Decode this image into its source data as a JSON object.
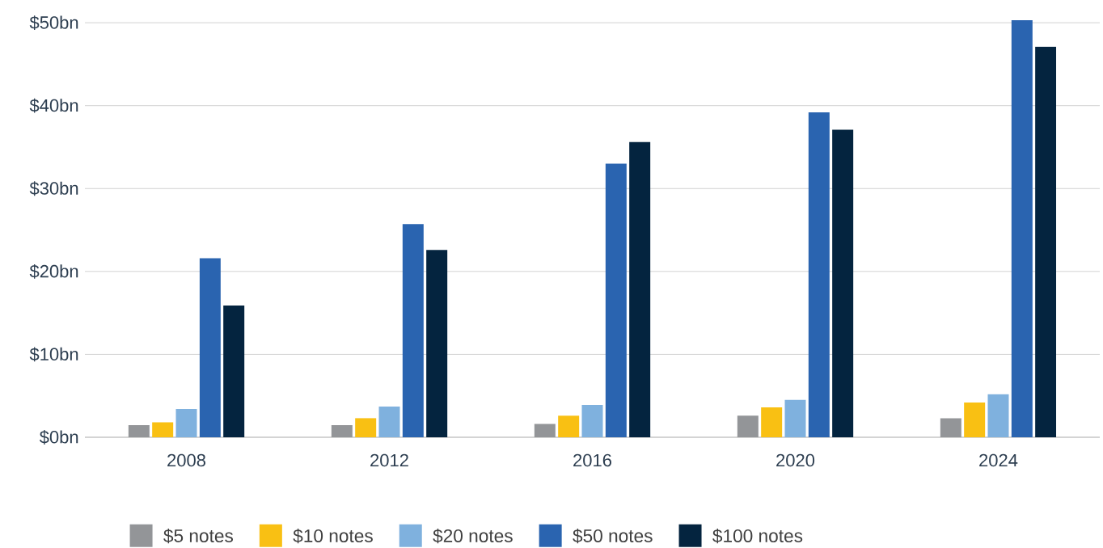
{
  "chart_data": {
    "type": "bar",
    "categories": [
      "2008",
      "2012",
      "2016",
      "2020",
      "2024"
    ],
    "series": [
      {
        "name": "$5 notes",
        "color": "#939598",
        "values": [
          1.45,
          1.45,
          1.6,
          2.6,
          2.3
        ]
      },
      {
        "name": "$10 notes",
        "color": "#f9c013",
        "values": [
          1.8,
          2.3,
          2.6,
          3.6,
          4.2
        ]
      },
      {
        "name": "$20 notes",
        "color": "#7fb1de",
        "values": [
          3.4,
          3.7,
          3.9,
          4.5,
          5.2
        ]
      },
      {
        "name": "$50 notes",
        "color": "#2a64b0",
        "values": [
          21.6,
          25.7,
          33.0,
          39.2,
          50.3
        ]
      },
      {
        "name": "$100 notes",
        "color": "#04243f",
        "values": [
          15.9,
          22.6,
          35.6,
          37.1,
          47.1
        ]
      }
    ],
    "ylim": [
      0,
      50.5
    ],
    "yticks": [
      {
        "value": 0,
        "label": "$0bn"
      },
      {
        "value": 10,
        "label": "$10bn"
      },
      {
        "value": 20,
        "label": "$20bn"
      },
      {
        "value": 30,
        "label": "$30bn"
      },
      {
        "value": 40,
        "label": "$40bn"
      },
      {
        "value": 50,
        "label": "$50bn"
      }
    ],
    "grid": "y",
    "legend": "bottom"
  }
}
